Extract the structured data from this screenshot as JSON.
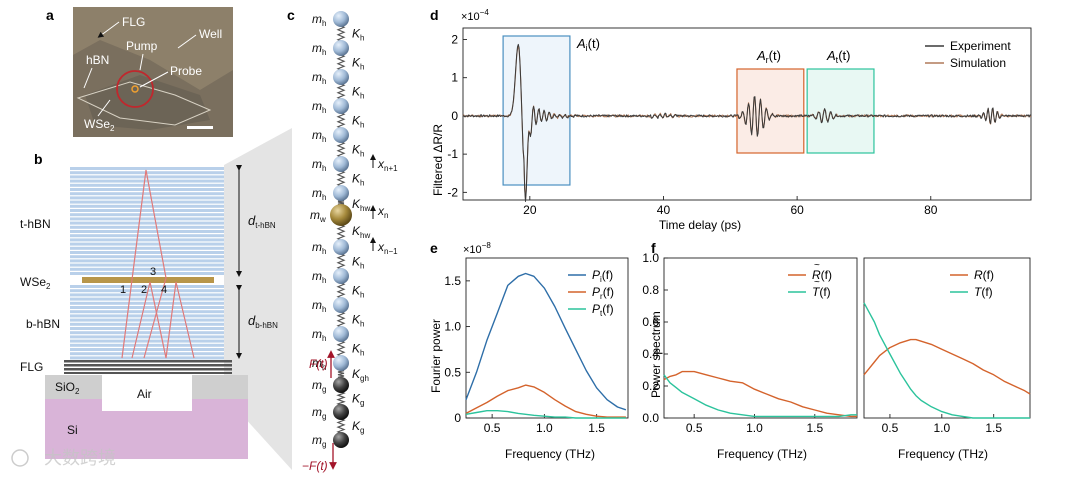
{
  "panels": {
    "a": {
      "letter": "a",
      "labels": [
        "FLG",
        "Well",
        "Pump",
        "hBN",
        "Probe",
        "WSe",
        "2"
      ]
    },
    "b": {
      "letter": "b",
      "layers": {
        "thbn": "t-hBN",
        "wse2": "WSe",
        "wse2_sub": "2",
        "bhbn": "b-hBN",
        "flg": "FLG",
        "sio2": "SiO",
        "sio2_sub": "2",
        "air": "Air",
        "si": "Si"
      },
      "dim_top": "d",
      "dim_top_sub": "t-hBN",
      "dim_bot": "d",
      "dim_bot_sub": "b-hBN",
      "path_labels": [
        "1",
        "2",
        "3",
        "4"
      ]
    },
    "c": {
      "letter": "c",
      "mass_h": "m",
      "mass_h_sub": "h",
      "spring_h": "K",
      "spring_h_sub": "h",
      "mass_w": "m",
      "mass_w_sub": "w",
      "spring_hw": "K",
      "spring_hw_sub": "hw",
      "spring_gh": "K",
      "spring_gh_sub": "gh",
      "mass_g": "m",
      "mass_g_sub": "g",
      "spring_g": "K",
      "spring_g_sub": "g",
      "x_up": "x",
      "x_up_sub": "n+1",
      "x_mid": "x",
      "x_mid_sub": "n",
      "x_down": "x",
      "x_down_sub": "n−1",
      "force": "F(t)",
      "force_neg": "−F(t)"
    },
    "d": {
      "letter": "d",
      "exponent": "×10",
      "exponent_pow": "−4",
      "ylabel": "Filtered ΔR/R",
      "xlabel": "Time delay (ps)",
      "legend": [
        "Experiment",
        "Simulation"
      ],
      "boxes": [
        {
          "label": "A",
          "sub": "i",
          "suffix": "(t)"
        },
        {
          "label": "A",
          "sub": "r",
          "suffix": "(t)"
        },
        {
          "label": "A",
          "sub": "t",
          "suffix": "(t)"
        }
      ]
    },
    "e": {
      "letter": "e",
      "exponent": "×10",
      "exponent_pow": "−8",
      "ylabel": "Fourier power",
      "xlabel": "Frequency (THz)",
      "legend": [
        {
          "label": "P",
          "sub": "i",
          "suffix": "(f)"
        },
        {
          "label": "P",
          "sub": "r",
          "suffix": "(f)"
        },
        {
          "label": "P",
          "sub": "t",
          "suffix": "(f)"
        }
      ]
    },
    "f": {
      "letter": "f",
      "ylabel": "Power spectrum",
      "xlabel_left": "Frequency (THz)",
      "xlabel_right": "Frequency (THz)",
      "legend_left": [
        {
          "label": "R",
          "suffix": "(f)"
        },
        {
          "label": "T",
          "suffix": "(f)"
        }
      ],
      "legend_right": [
        {
          "label": "R",
          "suffix": "(f)"
        },
        {
          "label": "T",
          "suffix": "(f)"
        }
      ]
    }
  },
  "watermark": "大数跨境",
  "colors": {
    "experiment": "#3a3a3a",
    "simulation": "#b07a5a",
    "pi": "#2e6ea8",
    "pr": "#d4632c",
    "pt": "#2cc39c",
    "box_i": "#4a8fc0",
    "box_r": "#d4632c",
    "box_t": "#2cc39c"
  },
  "chart_data": [
    {
      "type": "line",
      "panel": "d",
      "xlabel": "Time delay (ps)",
      "ylabel": "Filtered ΔR/R",
      "xlim": [
        10,
        95
      ],
      "ylim": [
        -2.2,
        2.3
      ],
      "xticks": [
        20,
        40,
        60,
        80
      ],
      "yticks": [
        -2,
        -1,
        0,
        1,
        2
      ],
      "series": [
        {
          "name": "Experiment"
        },
        {
          "name": "Simulation"
        }
      ],
      "annotations": [
        {
          "label": "A_i(t)",
          "x_range": [
            16,
            26
          ]
        },
        {
          "label": "A_r(t)",
          "x_range": [
            51,
            61
          ]
        },
        {
          "label": "A_t(t)",
          "x_range": [
            61.5,
            71.5
          ]
        }
      ]
    },
    {
      "type": "line",
      "panel": "e",
      "xlabel": "Frequency (THz)",
      "ylabel": "Fourier power",
      "xlim": [
        0.25,
        1.8
      ],
      "ylim": [
        0,
        1.75
      ],
      "xticks": [
        0.5,
        1.0,
        1.5
      ],
      "yticks": [
        0,
        0.5,
        1.0,
        1.5
      ],
      "x": [
        0.25,
        0.35,
        0.45,
        0.55,
        0.65,
        0.75,
        0.82,
        0.9,
        1.0,
        1.1,
        1.2,
        1.3,
        1.4,
        1.5,
        1.6,
        1.7,
        1.78
      ],
      "series": [
        {
          "name": "P_i(f)",
          "values": [
            0.2,
            0.5,
            0.85,
            1.15,
            1.45,
            1.55,
            1.58,
            1.55,
            1.42,
            1.22,
            0.98,
            0.75,
            0.52,
            0.33,
            0.2,
            0.12,
            0.09
          ]
        },
        {
          "name": "P_r(f)",
          "values": [
            0.05,
            0.11,
            0.17,
            0.24,
            0.3,
            0.33,
            0.36,
            0.34,
            0.28,
            0.2,
            0.13,
            0.07,
            0.04,
            0.02,
            0.01,
            0.01,
            0.01
          ]
        },
        {
          "name": "P_t(f)",
          "values": [
            0.04,
            0.06,
            0.08,
            0.08,
            0.07,
            0.05,
            0.04,
            0.03,
            0.02,
            0.01,
            0.01,
            0.0,
            0.0,
            0.0,
            0.0,
            0.0,
            0.0
          ]
        }
      ]
    },
    {
      "type": "line",
      "panel": "f-left",
      "xlabel": "Frequency (THz)",
      "ylabel": "Power spectrum",
      "xlim": [
        0.25,
        1.85
      ],
      "ylim": [
        0,
        1.0
      ],
      "xticks": [
        0.5,
        1.0,
        1.5
      ],
      "yticks": [
        0,
        0.2,
        0.4,
        0.6,
        0.8,
        1.0
      ],
      "x": [
        0.25,
        0.3,
        0.35,
        0.4,
        0.5,
        0.6,
        0.7,
        0.75,
        0.8,
        0.9,
        1.0,
        1.1,
        1.2,
        1.3,
        1.4,
        1.5,
        1.6,
        1.7,
        1.8,
        1.85
      ],
      "series": [
        {
          "name": "R~(f)",
          "values": [
            0.24,
            0.26,
            0.27,
            0.29,
            0.29,
            0.27,
            0.25,
            0.24,
            0.23,
            0.22,
            0.18,
            0.15,
            0.12,
            0.1,
            0.07,
            0.05,
            0.03,
            0.02,
            0.01,
            0.01
          ]
        },
        {
          "name": "T~(f)",
          "values": [
            0.27,
            0.22,
            0.19,
            0.16,
            0.12,
            0.08,
            0.05,
            0.04,
            0.03,
            0.02,
            0.01,
            0.01,
            0.01,
            0.01,
            0.01,
            0.01,
            0.01,
            0.01,
            0.02,
            0.02
          ]
        }
      ]
    },
    {
      "type": "line",
      "panel": "f-right",
      "xlabel": "Frequency (THz)",
      "xlim": [
        0.25,
        1.85
      ],
      "ylim": [
        0,
        1.0
      ],
      "xticks": [
        0.5,
        1.0,
        1.5
      ],
      "x": [
        0.25,
        0.3,
        0.35,
        0.4,
        0.5,
        0.6,
        0.7,
        0.75,
        0.8,
        0.9,
        1.0,
        1.1,
        1.2,
        1.3,
        1.4,
        1.5,
        1.6,
        1.7,
        1.8,
        1.85
      ],
      "series": [
        {
          "name": "R(f)",
          "values": [
            0.27,
            0.31,
            0.35,
            0.39,
            0.44,
            0.47,
            0.49,
            0.49,
            0.48,
            0.46,
            0.43,
            0.4,
            0.37,
            0.34,
            0.3,
            0.27,
            0.23,
            0.2,
            0.17,
            0.15
          ]
        },
        {
          "name": "T(f)",
          "values": [
            0.72,
            0.66,
            0.6,
            0.52,
            0.4,
            0.28,
            0.18,
            0.14,
            0.11,
            0.07,
            0.04,
            0.02,
            0.01,
            0.0,
            0.0,
            0.0,
            0.0,
            0.0,
            0.0,
            0.0
          ]
        }
      ]
    }
  ]
}
